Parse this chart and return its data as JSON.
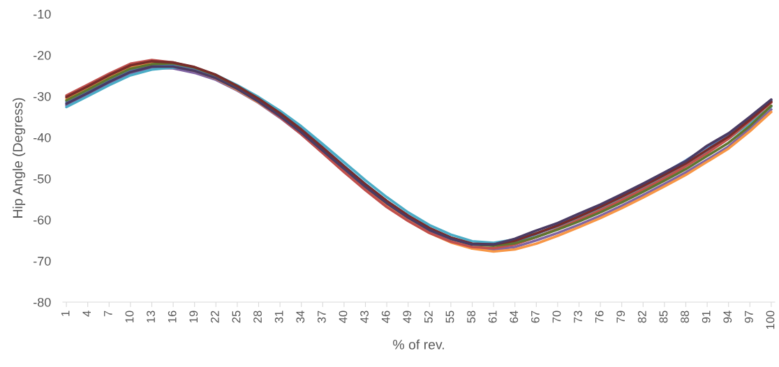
{
  "chart_data": {
    "type": "line",
    "xlabel": "% of rev.",
    "ylabel": "Hip Angle (Degress)",
    "x": [
      1,
      4,
      7,
      10,
      13,
      16,
      19,
      22,
      25,
      28,
      31,
      34,
      37,
      40,
      43,
      46,
      49,
      52,
      55,
      58,
      61,
      64,
      67,
      70,
      73,
      76,
      79,
      82,
      85,
      88,
      91,
      94,
      97,
      100
    ],
    "xlim": [
      0.5,
      100.5
    ],
    "xticks": [
      1,
      4,
      7,
      10,
      13,
      16,
      19,
      22,
      25,
      28,
      31,
      34,
      37,
      40,
      43,
      46,
      49,
      52,
      55,
      58,
      61,
      64,
      67,
      70,
      73,
      76,
      79,
      82,
      85,
      88,
      91,
      94,
      97,
      100
    ],
    "ylim": [
      -80,
      -10
    ],
    "yticks": [
      -80,
      -70,
      -60,
      -50,
      -40,
      -30,
      -20,
      -10
    ],
    "grid": false,
    "marker": "none",
    "line_style": "solid",
    "series": [
      {
        "color": "#8064a2",
        "values": [
          -32.2,
          -29.6,
          -26.9,
          -24.5,
          -23.1,
          -23.2,
          -24.3,
          -26,
          -28.6,
          -31.6,
          -35.2,
          -39.2,
          -43.7,
          -48.2,
          -52.6,
          -56.6,
          -60.1,
          -63,
          -65.3,
          -66.9,
          -67.3,
          -66.6,
          -65,
          -63.2,
          -61.2,
          -59,
          -56.6,
          -54,
          -51.3,
          -48.5,
          -45.4,
          -42.2,
          -37.8,
          -33.2
        ]
      },
      {
        "color": "#4bacc6",
        "values": [
          -32.6,
          -30,
          -27.3,
          -24.9,
          -23.5,
          -23,
          -23.3,
          -24.8,
          -27.3,
          -30.2,
          -33.5,
          -37.3,
          -41.6,
          -46,
          -50.4,
          -54.5,
          -58.2,
          -61.3,
          -63.6,
          -65.2,
          -65.6,
          -64.8,
          -63.3,
          -61.6,
          -59.5,
          -57.2,
          -54.7,
          -52.2,
          -49.5,
          -46.6,
          -43.5,
          -40.3,
          -36.5,
          -32.5
        ]
      },
      {
        "color": "#f79646",
        "values": [
          -30.6,
          -28,
          -25.3,
          -22.9,
          -21.9,
          -22.6,
          -23.8,
          -25.7,
          -28.4,
          -31.5,
          -35,
          -39,
          -43.5,
          -48,
          -52.5,
          -56.6,
          -60.2,
          -63.2,
          -65.5,
          -67,
          -67.7,
          -67.2,
          -65.8,
          -63.9,
          -61.8,
          -59.6,
          -57.2,
          -54.6,
          -51.9,
          -49.1,
          -45.9,
          -42.7,
          -38.5,
          -33.8
        ]
      },
      {
        "color": "#c0504d",
        "values": [
          -29.8,
          -27.2,
          -24.5,
          -22.1,
          -21.2,
          -21.8,
          -23,
          -25.2,
          -28,
          -31.3,
          -35,
          -39.2,
          -43.8,
          -48.4,
          -52.8,
          -56.9,
          -60.3,
          -63.2,
          -65.3,
          -66.6,
          -66.9,
          -66,
          -64.2,
          -62.2,
          -60,
          -57.7,
          -55.2,
          -52.6,
          -49.9,
          -47,
          -43.8,
          -40.3,
          -36,
          -31.5
        ]
      },
      {
        "color": "#4f81bd",
        "values": [
          -31.4,
          -28.8,
          -26.1,
          -23.7,
          -22.6,
          -22.2,
          -23.2,
          -25,
          -27.6,
          -30.7,
          -34.1,
          -38,
          -42.4,
          -46.9,
          -51.3,
          -55.4,
          -59,
          -62,
          -64.4,
          -65.8,
          -66.2,
          -65.3,
          -63.5,
          -61.4,
          -59.1,
          -56.7,
          -54.1,
          -51.4,
          -48.6,
          -45.6,
          -42.3,
          -39.2,
          -35.3,
          -31
        ]
      },
      {
        "color": "#5f7530",
        "values": [
          -31,
          -28.4,
          -25.7,
          -23.3,
          -22.2,
          -22,
          -23,
          -24.9,
          -27.6,
          -30.7,
          -34.2,
          -38.2,
          -42.6,
          -47.1,
          -51.5,
          -55.6,
          -59.2,
          -62.3,
          -64.6,
          -66,
          -66.3,
          -65.7,
          -64.2,
          -62.4,
          -60.4,
          -58.2,
          -55.8,
          -53.2,
          -50.5,
          -47.7,
          -44.5,
          -41.3,
          -37.2,
          -32.3
        ]
      },
      {
        "color": "#772c2a",
        "values": [
          -30.2,
          -27.6,
          -24.9,
          -22.5,
          -21.5,
          -21.8,
          -22.9,
          -24.8,
          -27.5,
          -30.6,
          -34.1,
          -38.1,
          -42.5,
          -47,
          -51.4,
          -55.4,
          -59,
          -62,
          -64.3,
          -65.8,
          -66,
          -65.1,
          -63.3,
          -61.4,
          -59.2,
          -56.9,
          -54.4,
          -51.8,
          -49.1,
          -46.3,
          -43,
          -39.8,
          -35.7,
          -31.3
        ]
      },
      {
        "color": "#4a3b63",
        "values": [
          -31.8,
          -29.2,
          -26.5,
          -24.1,
          -22.8,
          -22.8,
          -23.8,
          -25.6,
          -28.2,
          -31.3,
          -34.8,
          -38.8,
          -43.2,
          -47.6,
          -52,
          -56,
          -59.5,
          -62.5,
          -64.6,
          -66,
          -66,
          -64.6,
          -62.6,
          -60.8,
          -58.5,
          -56.3,
          -53.8,
          -51.2,
          -48.5,
          -45.8,
          -42,
          -39,
          -35,
          -30.8
        ]
      }
    ]
  }
}
